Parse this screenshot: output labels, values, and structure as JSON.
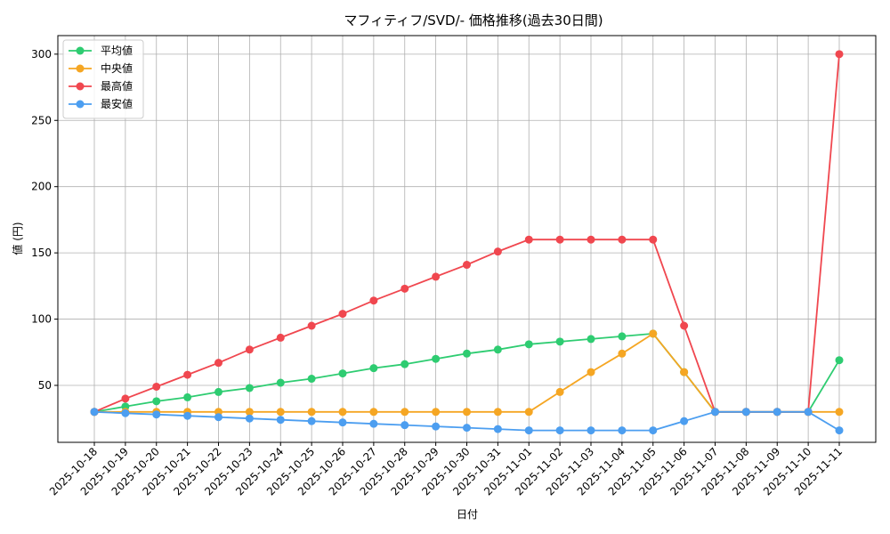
{
  "chart_data": {
    "type": "line",
    "title": "マフィティフ/SVD/- 価格推移(過去30日間)",
    "xlabel": "日付",
    "ylabel": "値 (円)",
    "x": [
      "2025-10-18",
      "2025-10-19",
      "2025-10-20",
      "2025-10-21",
      "2025-10-22",
      "2025-10-23",
      "2025-10-24",
      "2025-10-25",
      "2025-10-26",
      "2025-10-27",
      "2025-10-28",
      "2025-10-29",
      "2025-10-30",
      "2025-10-31",
      "2025-11-01",
      "2025-11-02",
      "2025-11-03",
      "2025-11-04",
      "2025-11-05",
      "2025-11-06",
      "2025-11-07",
      "2025-11-08",
      "2025-11-09",
      "2025-11-10",
      "2025-11-11"
    ],
    "yticks": [
      50,
      100,
      150,
      200,
      250,
      300
    ],
    "ylim": [
      7,
      314
    ],
    "grid": true,
    "legend": "top-left",
    "series": [
      {
        "name": "平均値",
        "color": "#2ecc71",
        "values": [
          30,
          34,
          38,
          41,
          45,
          48,
          52,
          55,
          59,
          63,
          66,
          70,
          74,
          77,
          81,
          83,
          85,
          87,
          89,
          60,
          30,
          30,
          30,
          30,
          69
        ]
      },
      {
        "name": "中央値",
        "color": "#f5a623",
        "values": [
          30,
          30,
          30,
          30,
          30,
          30,
          30,
          30,
          30,
          30,
          30,
          30,
          30,
          30,
          30,
          45,
          60,
          74,
          89,
          60,
          30,
          30,
          30,
          30,
          30
        ]
      },
      {
        "name": "最高値",
        "color": "#f0474f",
        "values": [
          30,
          40,
          49,
          58,
          67,
          77,
          86,
          95,
          104,
          114,
          123,
          132,
          141,
          151,
          160,
          160,
          160,
          160,
          160,
          95,
          30,
          30,
          30,
          30,
          300
        ]
      },
      {
        "name": "最安値",
        "color": "#4c9ef0",
        "values": [
          30,
          29,
          28,
          27,
          26,
          25,
          24,
          23,
          22,
          21,
          20,
          19,
          18,
          17,
          16,
          16,
          16,
          16,
          16,
          23,
          30,
          30,
          30,
          30,
          16
        ]
      }
    ]
  }
}
